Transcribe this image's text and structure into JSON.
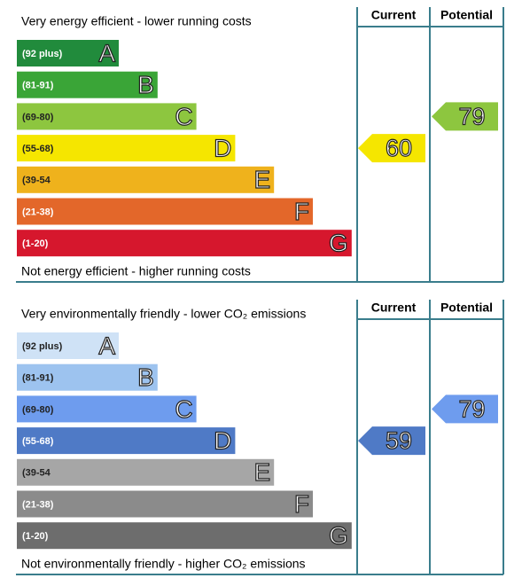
{
  "chart_data": [
    {
      "type": "epc",
      "top_label": "Very energy efficient - lower running costs",
      "bottom_label": "Not energy efficient - higher running costs",
      "columns": [
        "Current",
        "Potential"
      ],
      "bands": [
        {
          "range": "(92 plus)",
          "letter": "A",
          "color": "#218b3c"
        },
        {
          "range": "(81-91)",
          "letter": "B",
          "color": "#3aa537"
        },
        {
          "range": "(69-80)",
          "letter": "C",
          "color": "#8dc63f"
        },
        {
          "range": "(55-68)",
          "letter": "D",
          "color": "#f5e600"
        },
        {
          "range": "(39-54",
          "letter": "E",
          "color": "#efb21c"
        },
        {
          "range": "(21-38)",
          "letter": "F",
          "color": "#e3672a"
        },
        {
          "range": "(1-20)",
          "letter": "G",
          "color": "#d6172d"
        }
      ],
      "current": 60,
      "potential": 79
    },
    {
      "type": "epc",
      "top_label": "Very environmentally friendly - lower CO₂ emissions",
      "bottom_label": "Not environmentally friendly - higher CO₂ emissions",
      "columns": [
        "Current",
        "Potential"
      ],
      "bands": [
        {
          "range": "(92 plus)",
          "letter": "A",
          "color": "#cfe2f6"
        },
        {
          "range": "(81-91)",
          "letter": "B",
          "color": "#9dc3ef"
        },
        {
          "range": "(69-80)",
          "letter": "C",
          "color": "#6e9cee"
        },
        {
          "range": "(55-68)",
          "letter": "D",
          "color": "#4f7ac6"
        },
        {
          "range": "(39-54",
          "letter": "E",
          "color": "#a6a6a6"
        },
        {
          "range": "(21-38)",
          "letter": "F",
          "color": "#8b8b8b"
        },
        {
          "range": "(1-20)",
          "letter": "G",
          "color": "#6d6d6d"
        }
      ],
      "current": 59,
      "potential": 79
    }
  ]
}
